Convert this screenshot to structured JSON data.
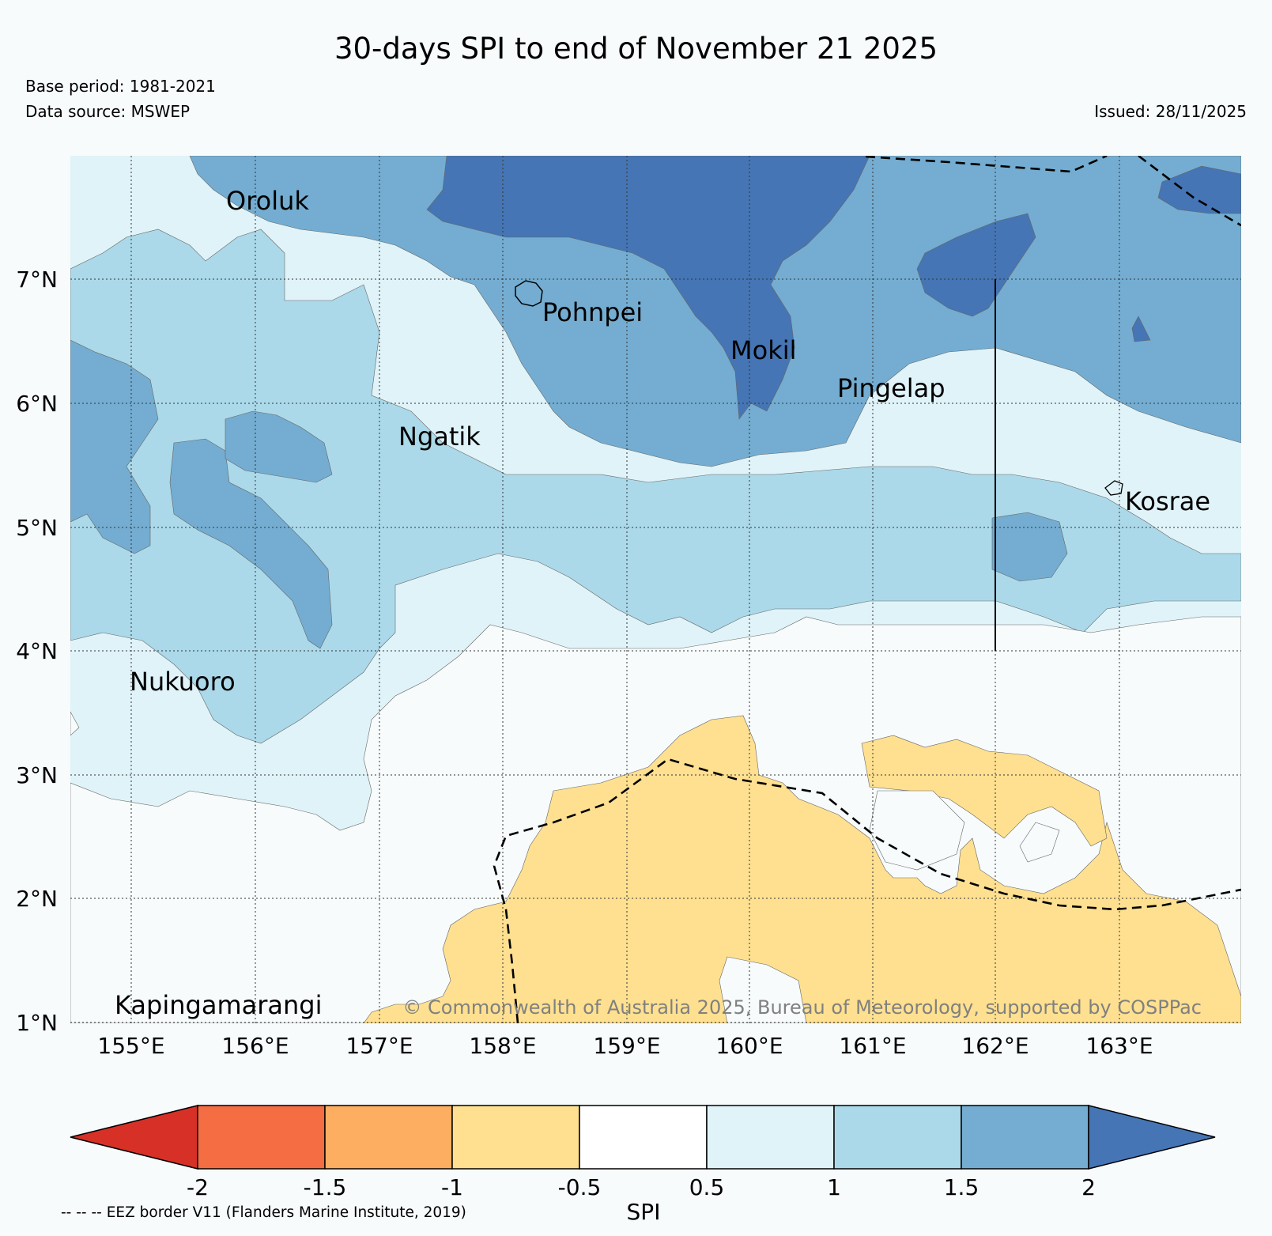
{
  "header": {
    "title": "30-days SPI to end of November 21 2025",
    "base_period": "Base period: 1981-2021",
    "data_source": "Data source: MSWEP",
    "issued": "Issued: 28/11/2025"
  },
  "map": {
    "lat_labels": [
      "7°N",
      "6°N",
      "5°N",
      "4°N",
      "3°N",
      "2°N",
      "1°N"
    ],
    "lon_labels": [
      "155°E",
      "156°E",
      "157°E",
      "158°E",
      "159°E",
      "160°E",
      "161°E",
      "162°E",
      "163°E"
    ],
    "places": [
      "Oroluk",
      "Pohnpei",
      "Mokil",
      "Pingelap",
      "Ngatik",
      "Kosrae",
      "Nukuoro",
      "Kapingamarangi"
    ],
    "copyright": "© Commonwealth of Australia 2025, Bureau of Meteorology, supported by COSPPac"
  },
  "legend": {
    "label": "SPI",
    "ticks": [
      "-2",
      "-1.5",
      "-1",
      "-0.5",
      "0.5",
      "1",
      "1.5",
      "2"
    ],
    "colors": [
      "#d73027",
      "#f46d43",
      "#fdae61",
      "#fee090",
      "#ffffff",
      "#e0f3f8",
      "#abd9e9",
      "#74add1",
      "#4575b4"
    ],
    "eez_note": "-- -- -- EEZ border V11 (Flanders Marine Institute, 2019)"
  }
}
